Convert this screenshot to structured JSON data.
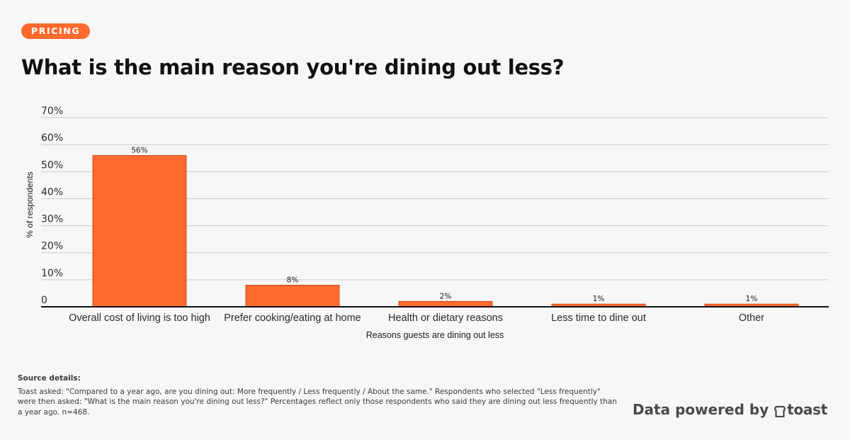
{
  "tag": {
    "label": "PRICING"
  },
  "title": "What is the main reason you're dining out less?",
  "chart_data": {
    "type": "bar",
    "categories": [
      "Overall cost of living is too high",
      "Prefer cooking/eating at home",
      "Health or dietary reasons",
      "Less time to dine out",
      "Other"
    ],
    "values": [
      56,
      8,
      2,
      1,
      1
    ],
    "value_labels": [
      "56%",
      "8%",
      "2%",
      "1%",
      "1%"
    ],
    "xlabel": "Reasons guests are dining out less",
    "ylabel": "% of respondents",
    "ylim": [
      0,
      70
    ],
    "yticks": [
      0,
      10,
      20,
      30,
      40,
      50,
      60,
      70
    ],
    "ytick_labels": [
      "0",
      "10%",
      "20%",
      "30%",
      "40%",
      "50%",
      "60%",
      "70%"
    ],
    "grid": true,
    "bar_color": "#ff6a2f",
    "bar_edge_color": "#c8501f"
  },
  "source": {
    "heading": "Source details:",
    "text": "Toast asked: \"Compared to a year ago, are you dining out: More frequently / Less frequently / About the same.\" Respondents who selected \"Less frequently\" were then asked: \"What is the main reason you're dining out less?\" Percentages reflect only those respondents who said they are dining out less frequently than a year ago. n=468."
  },
  "brand": {
    "prefix": "Data powered by",
    "name": "toast",
    "icon": "toast-bread-icon"
  },
  "colors": {
    "accent": "#ff6a2f",
    "background": "#f7f7f7",
    "gridline": "#c9c9c9"
  }
}
